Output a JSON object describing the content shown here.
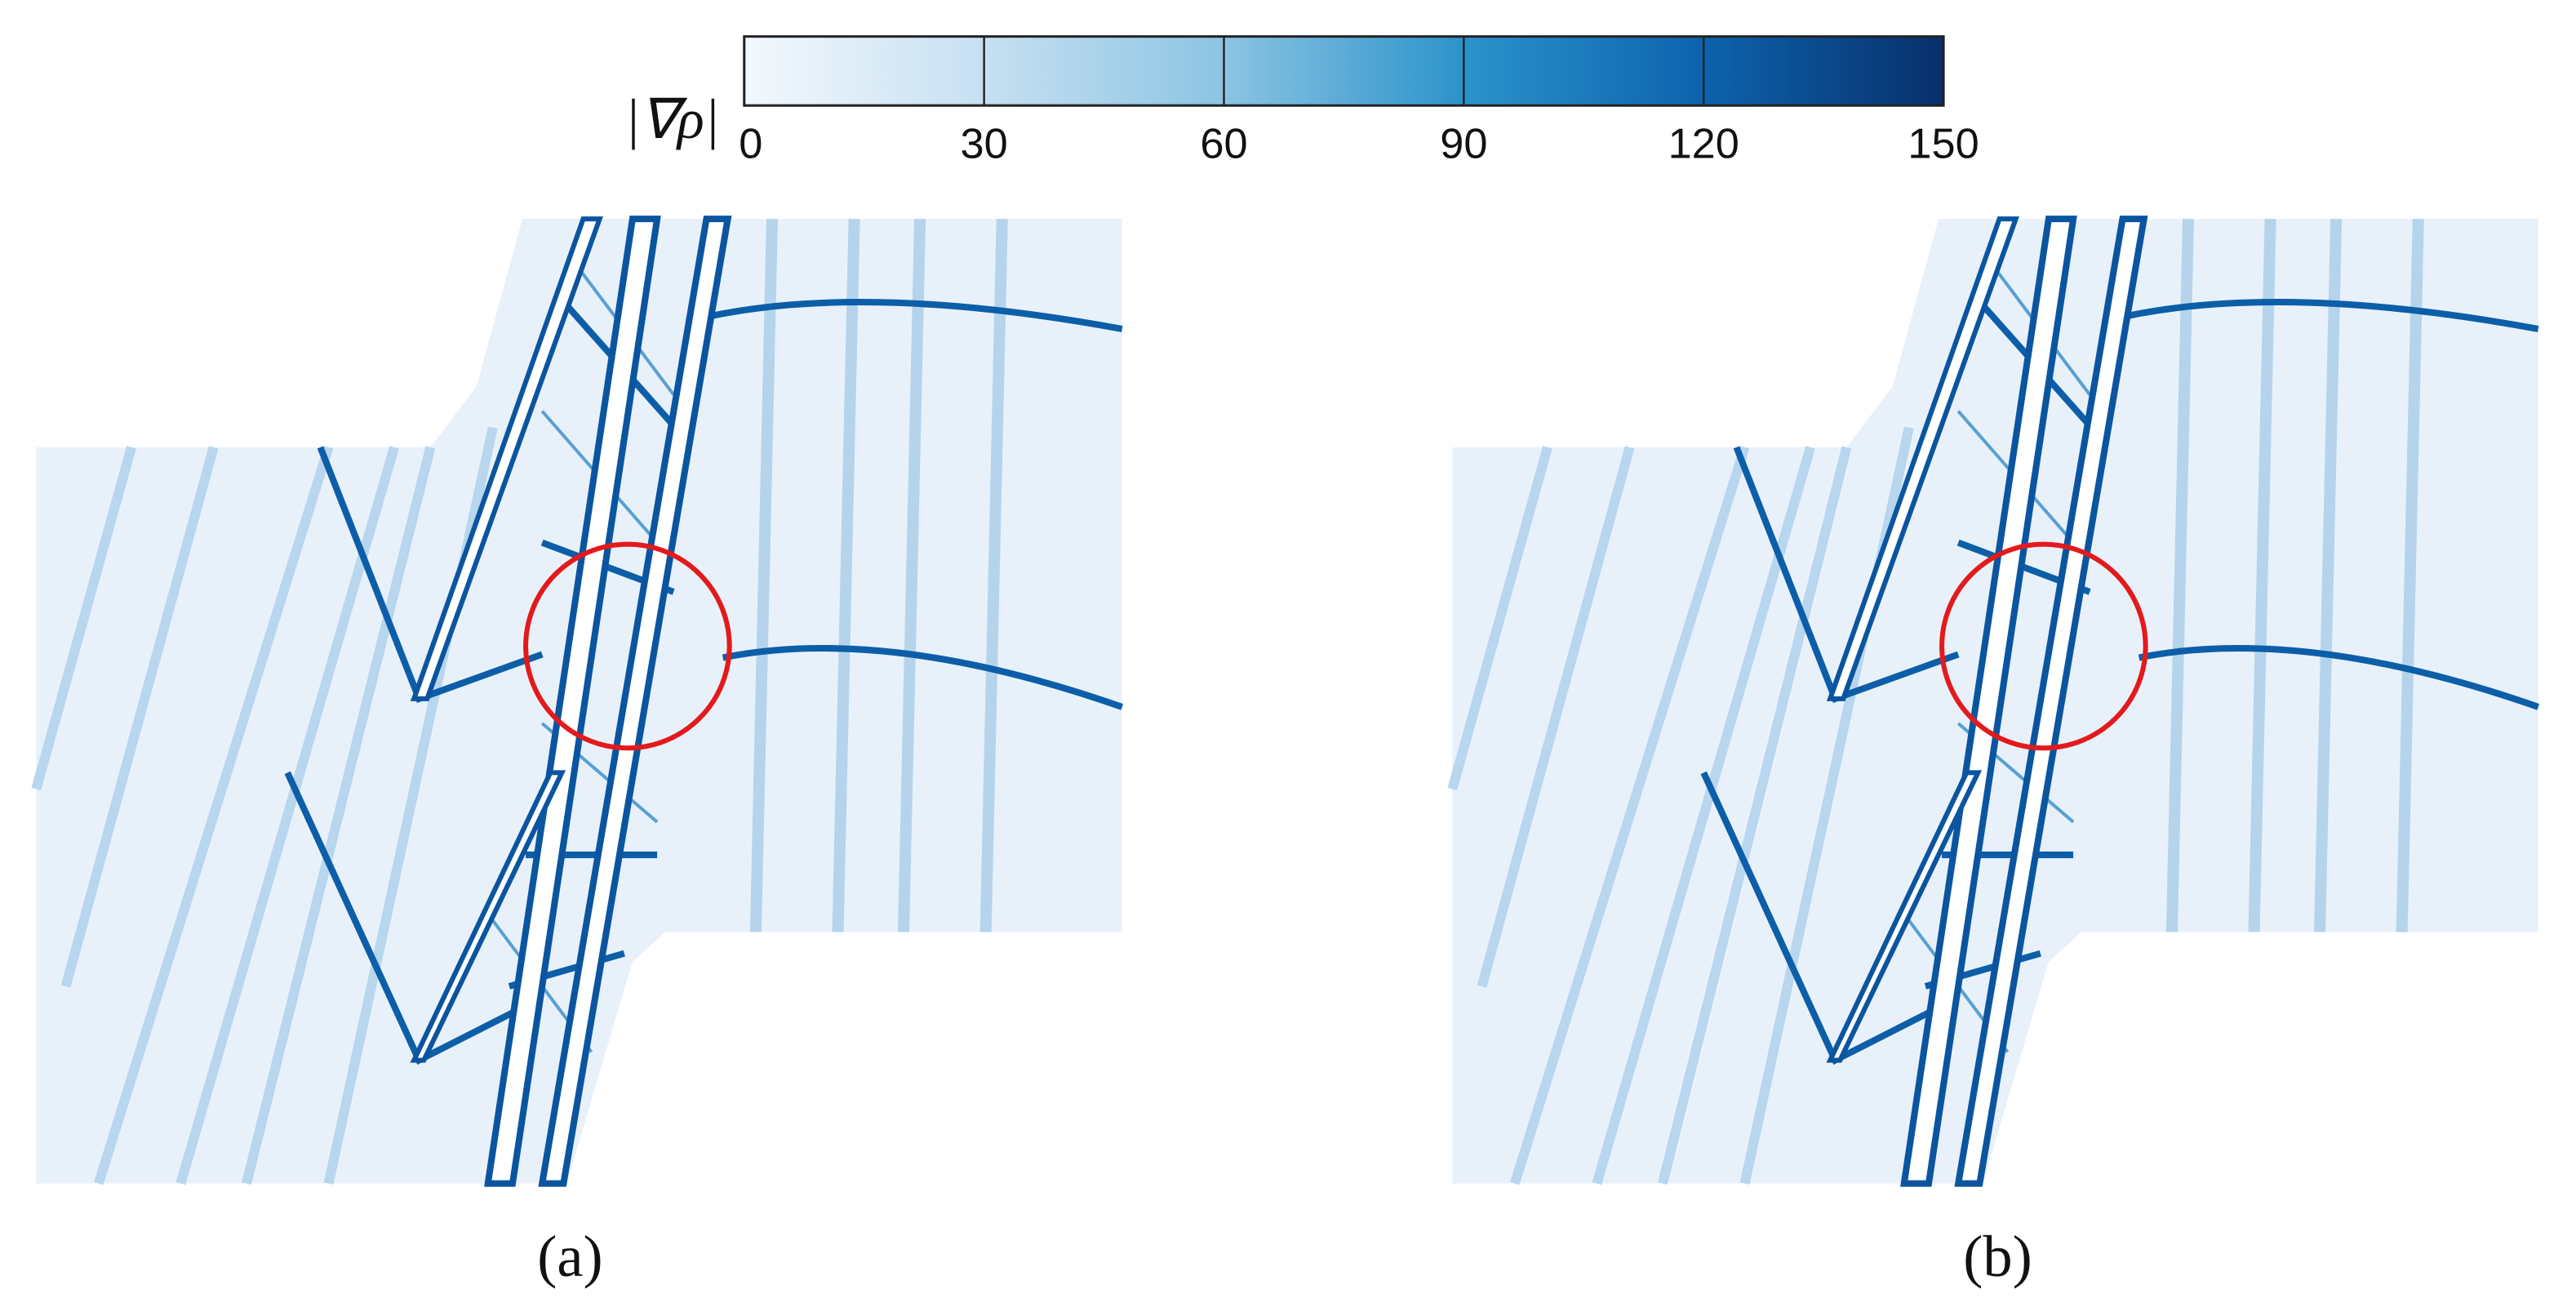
{
  "chart_data": {
    "type": "contour",
    "colorbar": {
      "label": "|∇ρ|",
      "lim": [
        0,
        150
      ],
      "ticks": [
        0,
        30,
        60,
        90,
        120,
        150
      ],
      "colors": [
        "#f3f8fd",
        "#c6e0f2",
        "#8cc4e3",
        "#2b93cb",
        "#0d63ad",
        "#08306b"
      ]
    },
    "panels": [
      {
        "label": "(a)"
      },
      {
        "label": "(b)"
      }
    ]
  }
}
